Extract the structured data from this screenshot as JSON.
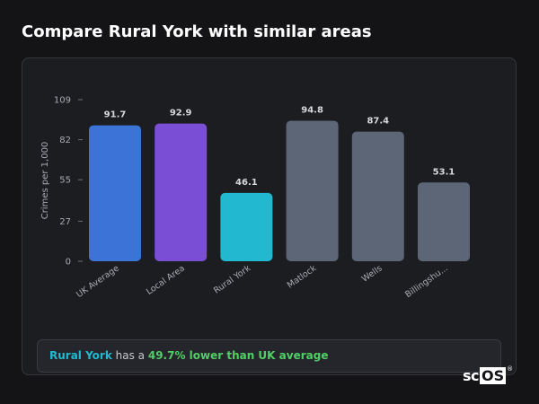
{
  "page": {
    "title": "Compare Rural York with similar areas"
  },
  "summary": {
    "area_name": "Rural York",
    "middle_text": " has a ",
    "difference_text": "49.7% lower than UK average"
  },
  "logo": {
    "text_sc": "sc",
    "text_os": "OS",
    "registered": "®"
  },
  "chart_data": {
    "type": "bar",
    "title": "",
    "xlabel": "",
    "ylabel": "Crimes per 1,000",
    "ylim": [
      0,
      109
    ],
    "yticks": [
      0,
      27,
      55,
      82,
      109
    ],
    "grid": false,
    "categories": [
      "UK Average",
      "Local Area",
      "Rural York",
      "Matlock",
      "Wells",
      "Billingshu..."
    ],
    "values": [
      91.7,
      92.9,
      46.1,
      94.8,
      87.4,
      53.1
    ],
    "value_labels": [
      "91.7",
      "92.9",
      "46.1",
      "94.8",
      "87.4",
      "53.1"
    ],
    "colors": [
      "#3b74d6",
      "#7a4fd6",
      "#22b8cf",
      "#5c6677",
      "#5c6677",
      "#5c6677"
    ]
  },
  "colors": {
    "background": "#141416",
    "card": "#1c1d21",
    "axis_text": "#a8abb2",
    "value_text": "#d6d8dc",
    "highlight": "#22b8cf",
    "positive": "#51cf66"
  }
}
